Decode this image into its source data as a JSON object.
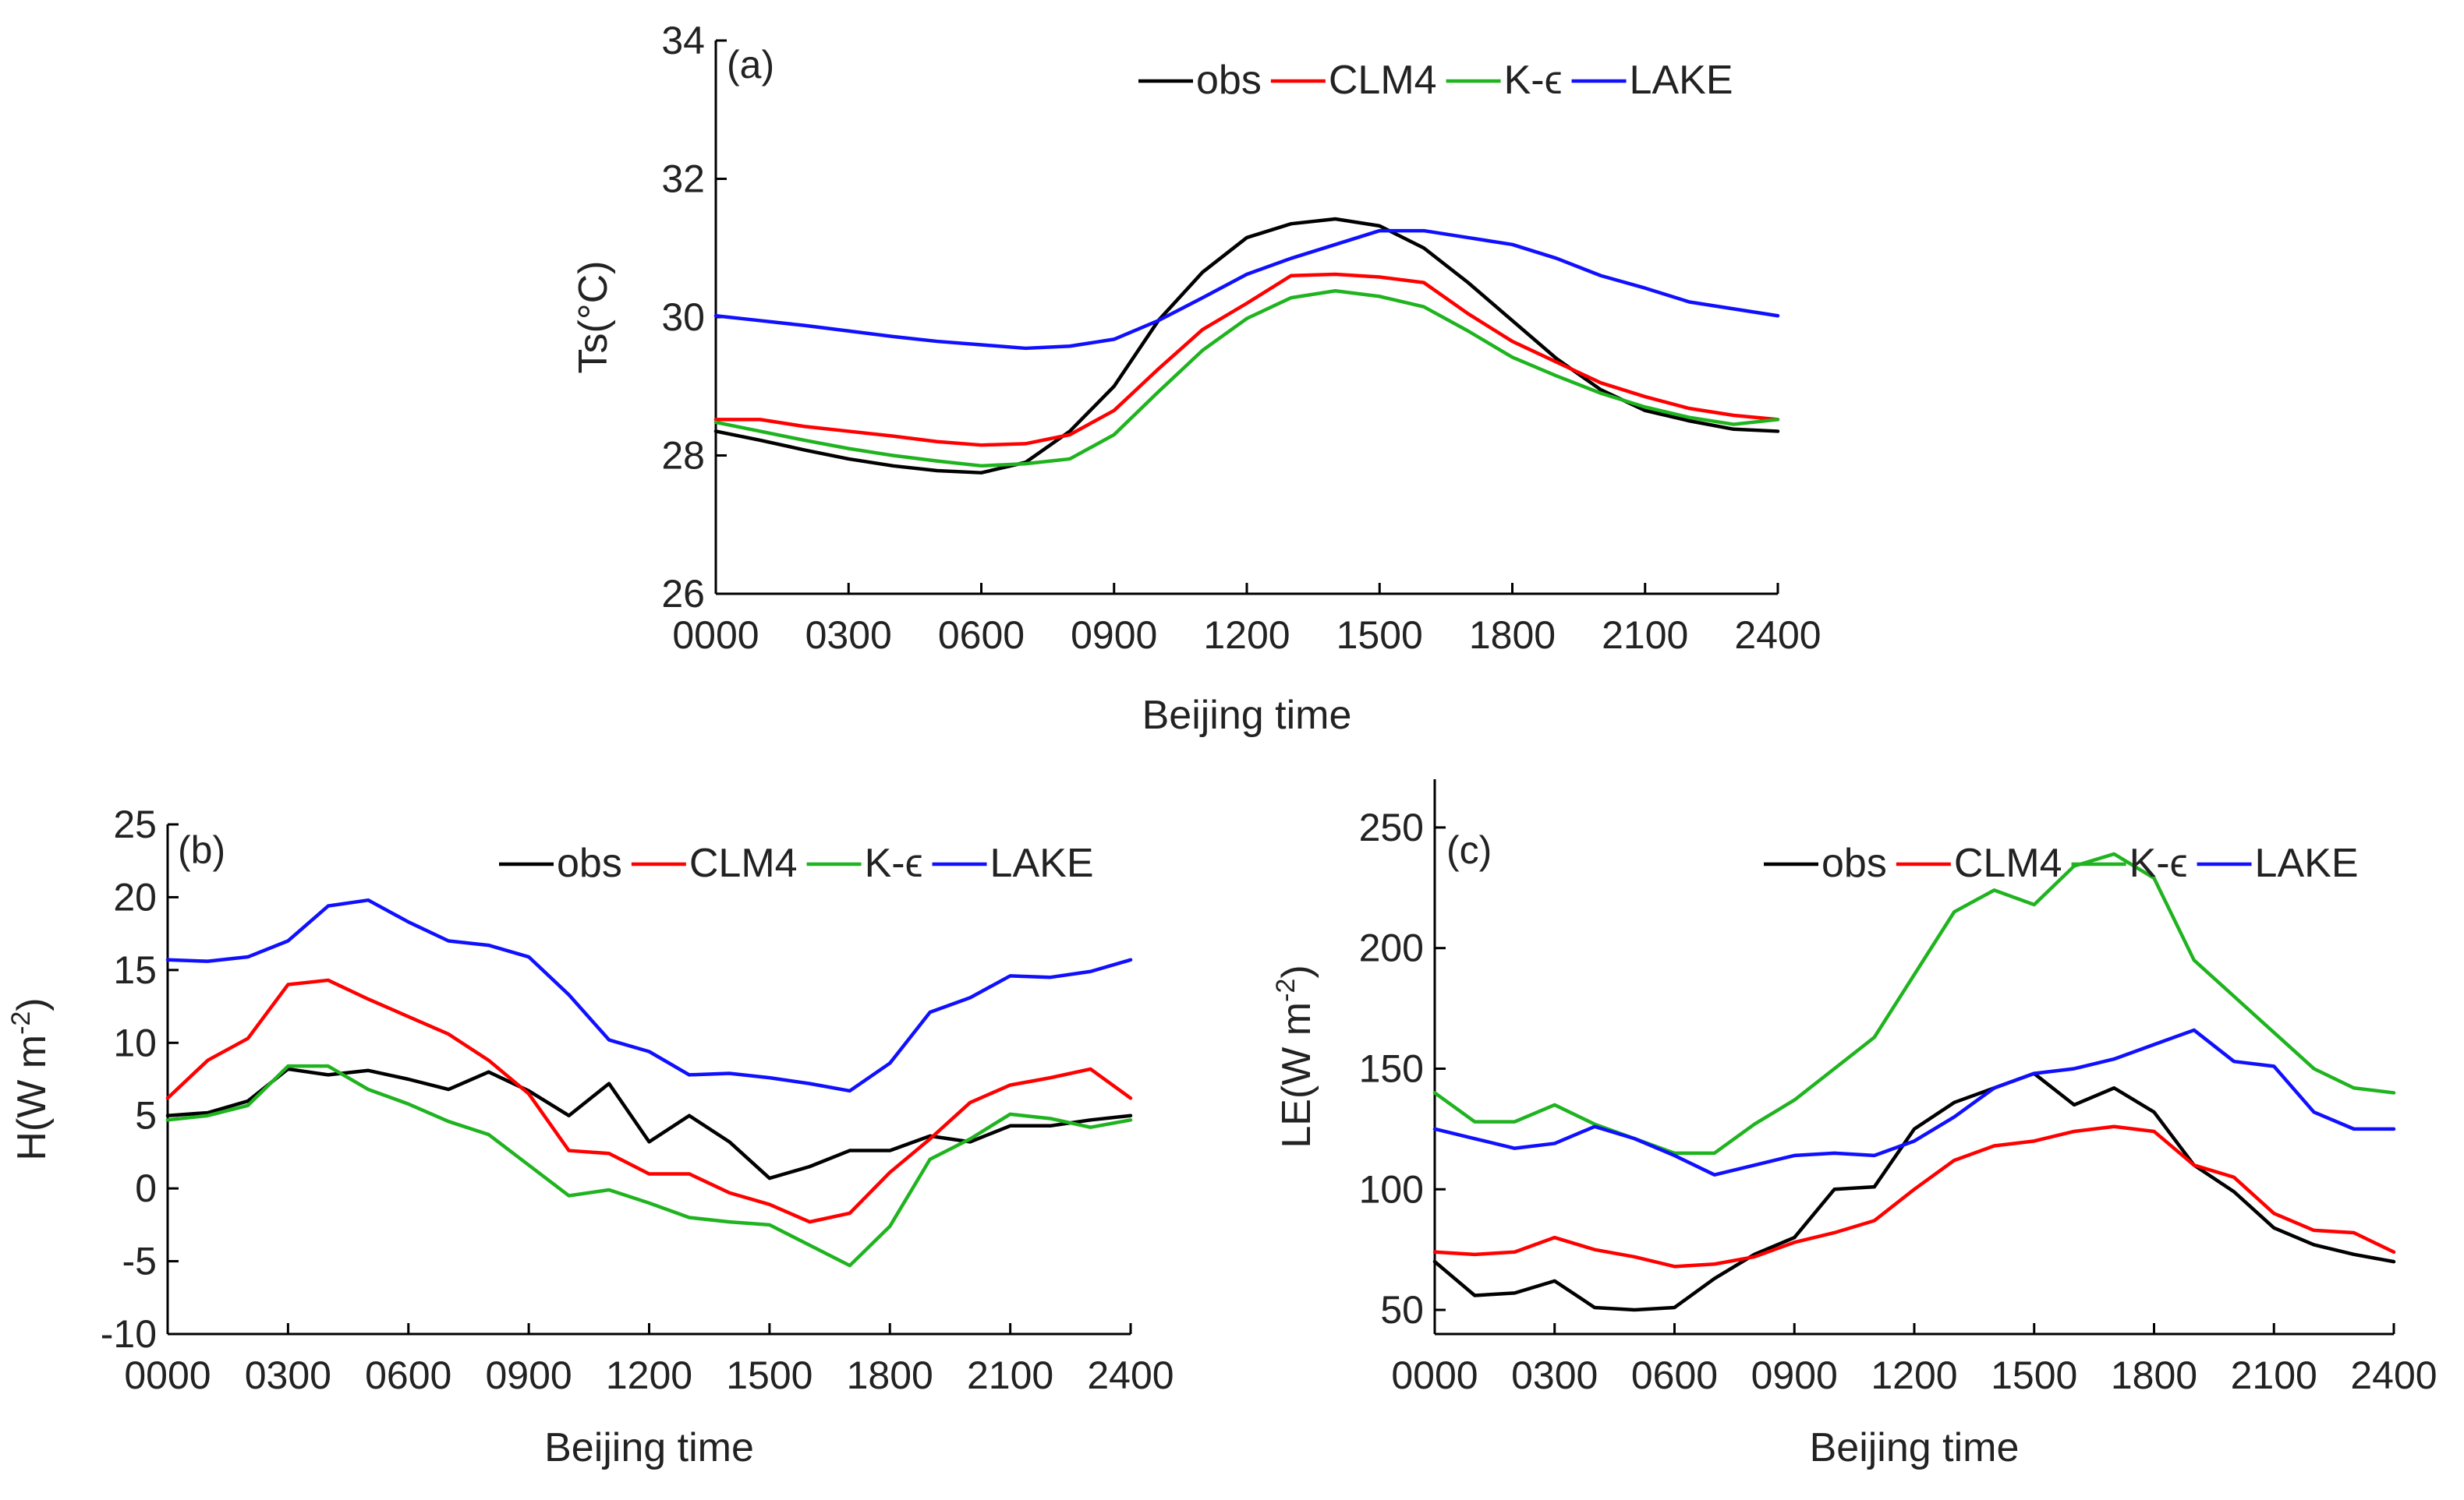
{
  "chart_data": [
    {
      "type": "line",
      "panel_label": "(a)",
      "xlabel": "Beijing time",
      "ylabel": "Ts(°C)",
      "x_ticks": [
        "0000",
        "0300",
        "0600",
        "0900",
        "1200",
        "1500",
        "1800",
        "2100",
        "2400"
      ],
      "xlim": [
        0,
        24
      ],
      "ylim": [
        26,
        34
      ],
      "y_ticks": [
        "26",
        "28",
        "30",
        "32",
        "34"
      ],
      "legend_position": "top-right",
      "series": [
        {
          "name": "obs",
          "color": "#000000",
          "values": [
            28.35,
            28.22,
            28.08,
            27.95,
            27.85,
            27.78,
            27.75,
            27.9,
            28.35,
            29.0,
            29.95,
            30.65,
            31.15,
            31.35,
            31.42,
            31.32,
            31.0,
            30.5,
            29.95,
            29.4,
            28.95,
            28.65,
            28.5,
            28.38,
            28.35
          ]
        },
        {
          "name": "CLM4",
          "color": "#ff0000",
          "values": [
            28.52,
            28.52,
            28.42,
            28.35,
            28.28,
            28.2,
            28.15,
            28.17,
            28.3,
            28.65,
            29.25,
            29.82,
            30.2,
            30.6,
            30.62,
            30.58,
            30.5,
            30.05,
            29.65,
            29.35,
            29.05,
            28.85,
            28.68,
            28.58,
            28.52
          ]
        },
        {
          "name": "K-ϵ",
          "color": "#1fb41f",
          "values": [
            28.48,
            28.35,
            28.22,
            28.1,
            28.0,
            27.92,
            27.85,
            27.88,
            27.95,
            28.3,
            28.92,
            29.52,
            29.98,
            30.28,
            30.38,
            30.3,
            30.15,
            29.8,
            29.42,
            29.15,
            28.9,
            28.7,
            28.55,
            28.45,
            28.52
          ]
        },
        {
          "name": "LAKE",
          "color": "#1010ff",
          "values": [
            30.02,
            29.95,
            29.88,
            29.8,
            29.72,
            29.65,
            29.6,
            29.55,
            29.58,
            29.68,
            29.95,
            30.28,
            30.62,
            30.85,
            31.05,
            31.25,
            31.25,
            31.15,
            31.05,
            30.85,
            30.6,
            30.42,
            30.22,
            30.12,
            30.02
          ]
        }
      ]
    },
    {
      "type": "line",
      "panel_label": "(b)",
      "xlabel": "Beijing time",
      "ylabel": "H(W m",
      "ylabel_superscript": "-2",
      "ylabel_suffix": ")",
      "x_ticks": [
        "0000",
        "0300",
        "0600",
        "0900",
        "1200",
        "1500",
        "1800",
        "2100",
        "2400"
      ],
      "xlim": [
        0,
        24
      ],
      "ylim": [
        -10,
        25
      ],
      "y_ticks": [
        "-10",
        "-5",
        "0",
        "5",
        "10",
        "15",
        "20",
        "25"
      ],
      "legend_position": "top-right",
      "series": [
        {
          "name": "obs",
          "color": "#000000",
          "values": [
            5.0,
            5.2,
            6.0,
            8.2,
            7.8,
            8.1,
            7.5,
            6.8,
            8.0,
            6.7,
            5.0,
            7.2,
            3.2,
            5.0,
            3.2,
            0.7,
            1.5,
            2.6,
            2.6,
            3.6,
            3.2,
            4.3,
            4.3,
            4.7,
            5.0
          ]
        },
        {
          "name": "CLM4",
          "color": "#ff0000",
          "values": [
            6.2,
            8.8,
            10.3,
            14.0,
            14.3,
            13.0,
            11.8,
            10.6,
            8.8,
            6.5,
            2.6,
            2.4,
            1.0,
            1.0,
            -0.3,
            -1.1,
            -2.3,
            -1.7,
            1.1,
            3.4,
            5.9,
            7.1,
            7.6,
            8.2,
            6.2
          ]
        },
        {
          "name": "K-ϵ",
          "color": "#1fb41f",
          "values": [
            4.7,
            5.0,
            5.7,
            8.4,
            8.4,
            6.8,
            5.8,
            4.6,
            3.7,
            1.6,
            -0.5,
            -0.1,
            -1.0,
            -2.0,
            -2.3,
            -2.5,
            -3.9,
            -5.3,
            -2.6,
            2.0,
            3.4,
            5.1,
            4.8,
            4.2,
            4.7
          ]
        },
        {
          "name": "LAKE",
          "color": "#1010ff",
          "values": [
            15.7,
            15.6,
            15.9,
            17.0,
            19.4,
            19.8,
            18.3,
            17.0,
            16.7,
            15.9,
            13.3,
            10.2,
            9.4,
            7.8,
            7.9,
            7.6,
            7.2,
            6.7,
            8.6,
            12.1,
            13.1,
            14.6,
            14.5,
            14.9,
            15.7
          ]
        }
      ]
    },
    {
      "type": "line",
      "panel_label": "(c)",
      "xlabel": "Beijing time",
      "ylabel": "LE(W m",
      "ylabel_superscript": "-2",
      "ylabel_suffix": ")",
      "x_ticks": [
        "0000",
        "0300",
        "0600",
        "0900",
        "1200",
        "1500",
        "1800",
        "2100",
        "2400"
      ],
      "xlim": [
        0,
        24
      ],
      "ylim": [
        40,
        270
      ],
      "y_ticks": [
        "50",
        "100",
        "150",
        "200",
        "250"
      ],
      "legend_position": "top-right",
      "series": [
        {
          "name": "obs",
          "color": "#000000",
          "values": [
            70,
            56,
            57,
            62,
            51,
            50,
            51,
            63,
            73,
            80,
            100,
            101,
            125,
            136,
            142,
            148,
            135,
            142,
            132,
            110,
            99,
            84,
            77,
            73,
            70
          ]
        },
        {
          "name": "CLM4",
          "color": "#ff0000",
          "values": [
            74,
            73,
            74,
            80,
            75,
            72,
            68,
            69,
            72,
            78,
            82,
            87,
            100,
            112,
            118,
            120,
            124,
            126,
            124,
            110,
            105,
            90,
            83,
            82,
            74
          ]
        },
        {
          "name": "K-ϵ",
          "color": "#1fb41f",
          "values": [
            140,
            128,
            128,
            135,
            127,
            121,
            115,
            115,
            127,
            137,
            150,
            163,
            189,
            215,
            224,
            218,
            234,
            239,
            229,
            195,
            180,
            165,
            150,
            142,
            140
          ]
        },
        {
          "name": "LAKE",
          "color": "#1010ff",
          "values": [
            125,
            121,
            117,
            119,
            126,
            121,
            114,
            106,
            110,
            114,
            115,
            114,
            120,
            130,
            142,
            148,
            150,
            154,
            160,
            166,
            153,
            151,
            132,
            125,
            125
          ]
        }
      ]
    }
  ]
}
